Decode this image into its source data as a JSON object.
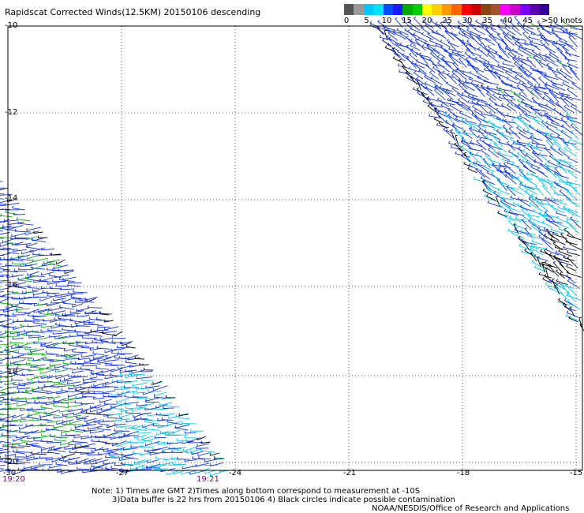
{
  "title": "Rapidscat Corrected Winds(12.5KM) 20150106 descending",
  "legend": {
    "colors": [
      "#555555",
      "#9a9a9a",
      "#00c8ff",
      "#00e0ff",
      "#0050ff",
      "#1a1aff",
      "#00aa00",
      "#00d000",
      "#ffff00",
      "#ffd000",
      "#ff9900",
      "#ff6600",
      "#ff0000",
      "#cc0000",
      "#8b4513",
      "#a0522d",
      "#ff00ff",
      "#cc00cc",
      "#7a00ff",
      "#5a00b0",
      "#330099"
    ],
    "tick_labels": [
      "0",
      "5",
      "10",
      "15",
      "20",
      "25",
      "30",
      "35",
      "40",
      "45",
      ">50 knots"
    ]
  },
  "axes": {
    "lat_labels": [
      "-10",
      "-12",
      "-14",
      "-16",
      "-18",
      "-20"
    ],
    "lon_labels": [
      "-30",
      "-27",
      "-24",
      "-21",
      "-18",
      "-15"
    ],
    "grid": true
  },
  "times": {
    "left": "19:20",
    "mid": "19:21"
  },
  "notes": {
    "line1": "Note: 1) Times are GMT 2)Times along bottom correspond to measurement at -10S",
    "line2": "3)Data buffer is 22 hrs from 20150106 4) Black circles indicate possible contamination",
    "credit": "NOAA/NESDIS/Office of Research and Applications"
  },
  "wind_colors": {
    "cyan": "#00c8e8",
    "blue": "#1030e0",
    "green": "#10b010",
    "black": "#000000",
    "yellow": "#e0e000"
  }
}
